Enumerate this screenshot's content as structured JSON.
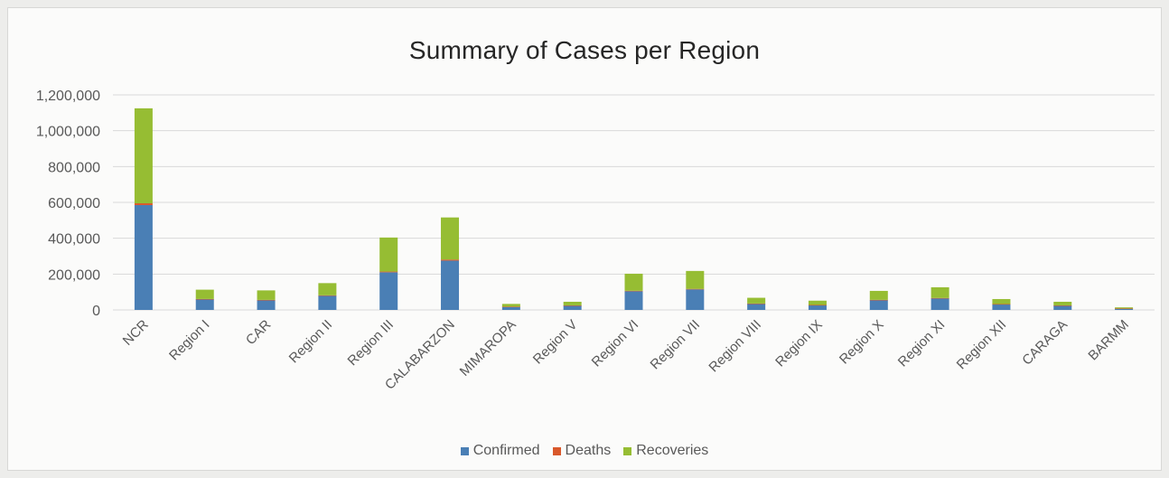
{
  "chart_data": {
    "type": "bar",
    "stacked": true,
    "title": "Summary of Cases per Region",
    "xlabel": "",
    "ylabel": "",
    "ylim": [
      0,
      1200000
    ],
    "yticks": [
      0,
      200000,
      400000,
      600000,
      800000,
      1000000,
      1200000
    ],
    "ytick_labels": [
      "0",
      "200,000",
      "400,000",
      "600,000",
      "800,000",
      "1,000,000",
      "1,200,000"
    ],
    "grid": true,
    "legend_position": "bottom",
    "categories": [
      "NCR",
      "Region I",
      "CAR",
      "Region II",
      "Region III",
      "CALABARZON",
      "MIMAROPA",
      "Region V",
      "Region VI",
      "Region VII",
      "Region VIII",
      "Region IX",
      "Region X",
      "Region XI",
      "Region XII",
      "CARAGA",
      "BARMM"
    ],
    "series": [
      {
        "name": "Confirmed",
        "color": "#4a7fb5",
        "values": [
          585000,
          60000,
          55000,
          80000,
          210000,
          275000,
          18000,
          25000,
          105000,
          115000,
          35000,
          27000,
          55000,
          65000,
          32000,
          25000,
          8000
        ]
      },
      {
        "name": "Deaths",
        "color": "#d9582b",
        "values": [
          10000,
          1000,
          1000,
          1500,
          4000,
          6000,
          500,
          500,
          2000,
          2500,
          800,
          700,
          1200,
          1500,
          700,
          500,
          200
        ]
      },
      {
        "name": "Recoveries",
        "color": "#96bd33",
        "values": [
          530000,
          52000,
          53000,
          68000,
          190000,
          235000,
          15000,
          20000,
          95000,
          100000,
          32000,
          24000,
          50000,
          60000,
          28000,
          20000,
          6000
        ]
      }
    ]
  }
}
